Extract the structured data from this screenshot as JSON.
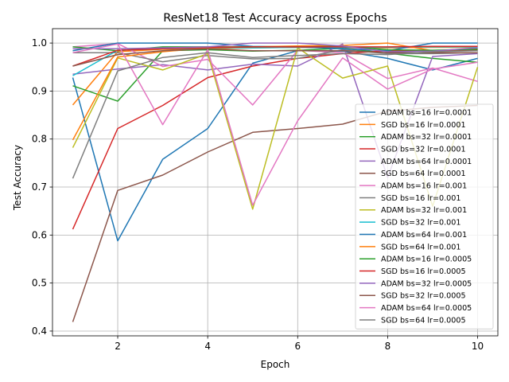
{
  "chart_data": {
    "type": "line",
    "title": "ResNet18 Test Accuracy across Epochs",
    "xlabel": "Epoch",
    "ylabel": "Test Accuracy",
    "x": [
      1,
      2,
      3,
      4,
      5,
      6,
      7,
      8,
      9,
      10
    ],
    "xlim": [
      0.55,
      10.45
    ],
    "ylim": [
      0.39,
      1.03
    ],
    "xticks": [
      2,
      4,
      6,
      8,
      10
    ],
    "yticks": [
      0.4,
      0.5,
      0.6,
      0.7,
      0.8,
      0.9,
      1.0
    ],
    "ytick_labels": [
      "0.4",
      "0.5",
      "0.6",
      "0.7",
      "0.8",
      "0.9",
      "1.0"
    ],
    "grid": true,
    "legend_position": "center-right",
    "series": [
      {
        "name": "ADAM bs=16 lr=0.0001",
        "color": "#1f77b4",
        "values": [
          0.928,
          0.588,
          0.758,
          0.822,
          0.958,
          0.984,
          0.983,
          0.968,
          0.944,
          0.968
        ]
      },
      {
        "name": "SGD bs=16 lr=0.0001",
        "color": "#ff7f0e",
        "values": [
          0.871,
          0.982,
          0.987,
          0.988,
          0.99,
          0.991,
          0.99,
          0.99,
          0.991,
          0.991
        ]
      },
      {
        "name": "ADAM bs=32 lr=0.0001",
        "color": "#2ca02c",
        "values": [
          0.911,
          0.879,
          0.984,
          0.986,
          0.983,
          0.985,
          0.989,
          0.979,
          0.968,
          0.96
        ]
      },
      {
        "name": "SGD bs=32 lr=0.0001",
        "color": "#d62728",
        "values": [
          0.612,
          0.822,
          0.87,
          0.928,
          0.952,
          0.968,
          0.978,
          0.984,
          0.983,
          0.985
        ]
      },
      {
        "name": "ADAM bs=64 lr=0.0001",
        "color": "#9467bd",
        "values": [
          0.935,
          0.946,
          0.955,
          0.944,
          0.956,
          0.952,
          0.998,
          0.72,
          0.972,
          0.978
        ]
      },
      {
        "name": "SGD bs=64 lr=0.0001",
        "color": "#8c564b",
        "values": [
          0.419,
          0.693,
          0.725,
          0.773,
          0.814,
          0.822,
          0.831,
          0.858,
          0.866,
          0.87
        ]
      },
      {
        "name": "ADAM bs=16 lr=0.001",
        "color": "#e377c2",
        "values": [
          0.992,
          0.999,
          0.951,
          0.966,
          0.871,
          0.985,
          0.98,
          0.926,
          0.948,
          0.92
        ]
      },
      {
        "name": "SGD bs=16 lr=0.001",
        "color": "#7f7f7f",
        "values": [
          0.98,
          0.98,
          0.961,
          0.974,
          0.967,
          0.968,
          0.986,
          0.978,
          0.978,
          0.98
        ]
      },
      {
        "name": "ADAM bs=32 lr=0.001",
        "color": "#bcbd22",
        "values": [
          0.782,
          0.969,
          0.944,
          0.978,
          0.654,
          0.99,
          0.927,
          0.952,
          0.66,
          0.95
        ]
      },
      {
        "name": "SGD bs=32 lr=0.001",
        "color": "#17becf",
        "values": [
          0.932,
          0.985,
          0.988,
          0.99,
          0.99,
          0.991,
          0.991,
          0.991,
          0.992,
          0.992
        ]
      },
      {
        "name": "ADAM bs=64 lr=0.001",
        "color": "#1f77b4",
        "values": [
          0.984,
          1.0,
          1.0,
          1.0,
          0.993,
          0.992,
          0.988,
          0.984,
          1.0,
          1.0
        ]
      },
      {
        "name": "SGD bs=64 lr=0.001",
        "color": "#ff7f0e",
        "values": [
          0.798,
          0.971,
          0.982,
          0.99,
          0.992,
          0.994,
          0.995,
          1.0,
          0.984,
          0.988
        ]
      },
      {
        "name": "ADAM bs=16 lr=0.0005",
        "color": "#2ca02c",
        "values": [
          0.992,
          0.984,
          0.992,
          0.992,
          0.992,
          0.992,
          0.993,
          0.986,
          0.985,
          0.987
        ]
      },
      {
        "name": "SGD bs=16 lr=0.0005",
        "color": "#d62728",
        "values": [
          0.952,
          0.985,
          0.988,
          0.991,
          0.992,
          0.992,
          0.992,
          0.992,
          0.993,
          0.993
        ]
      },
      {
        "name": "ADAM bs=32 lr=0.0005",
        "color": "#9467bd",
        "values": [
          0.988,
          0.988,
          0.99,
          0.992,
          1.0,
          1.0,
          0.994,
          0.982,
          0.983,
          0.99
        ]
      },
      {
        "name": "SGD bs=32 lr=0.0005",
        "color": "#8c564b",
        "values": [
          0.952,
          0.976,
          0.984,
          0.988,
          0.984,
          0.984,
          0.984,
          0.98,
          0.98,
          0.98
        ]
      },
      {
        "name": "ADAM bs=64 lr=0.0005",
        "color": "#e377c2",
        "values": [
          0.98,
          0.998,
          0.83,
          0.986,
          0.662,
          0.838,
          0.969,
          0.904,
          0.946,
          0.96
        ]
      },
      {
        "name": "SGD bs=64 lr=0.0005",
        "color": "#7f7f7f",
        "values": [
          0.718,
          0.942,
          0.97,
          0.98,
          0.97,
          0.974,
          0.978,
          0.976,
          0.982,
          0.984
        ]
      }
    ]
  }
}
